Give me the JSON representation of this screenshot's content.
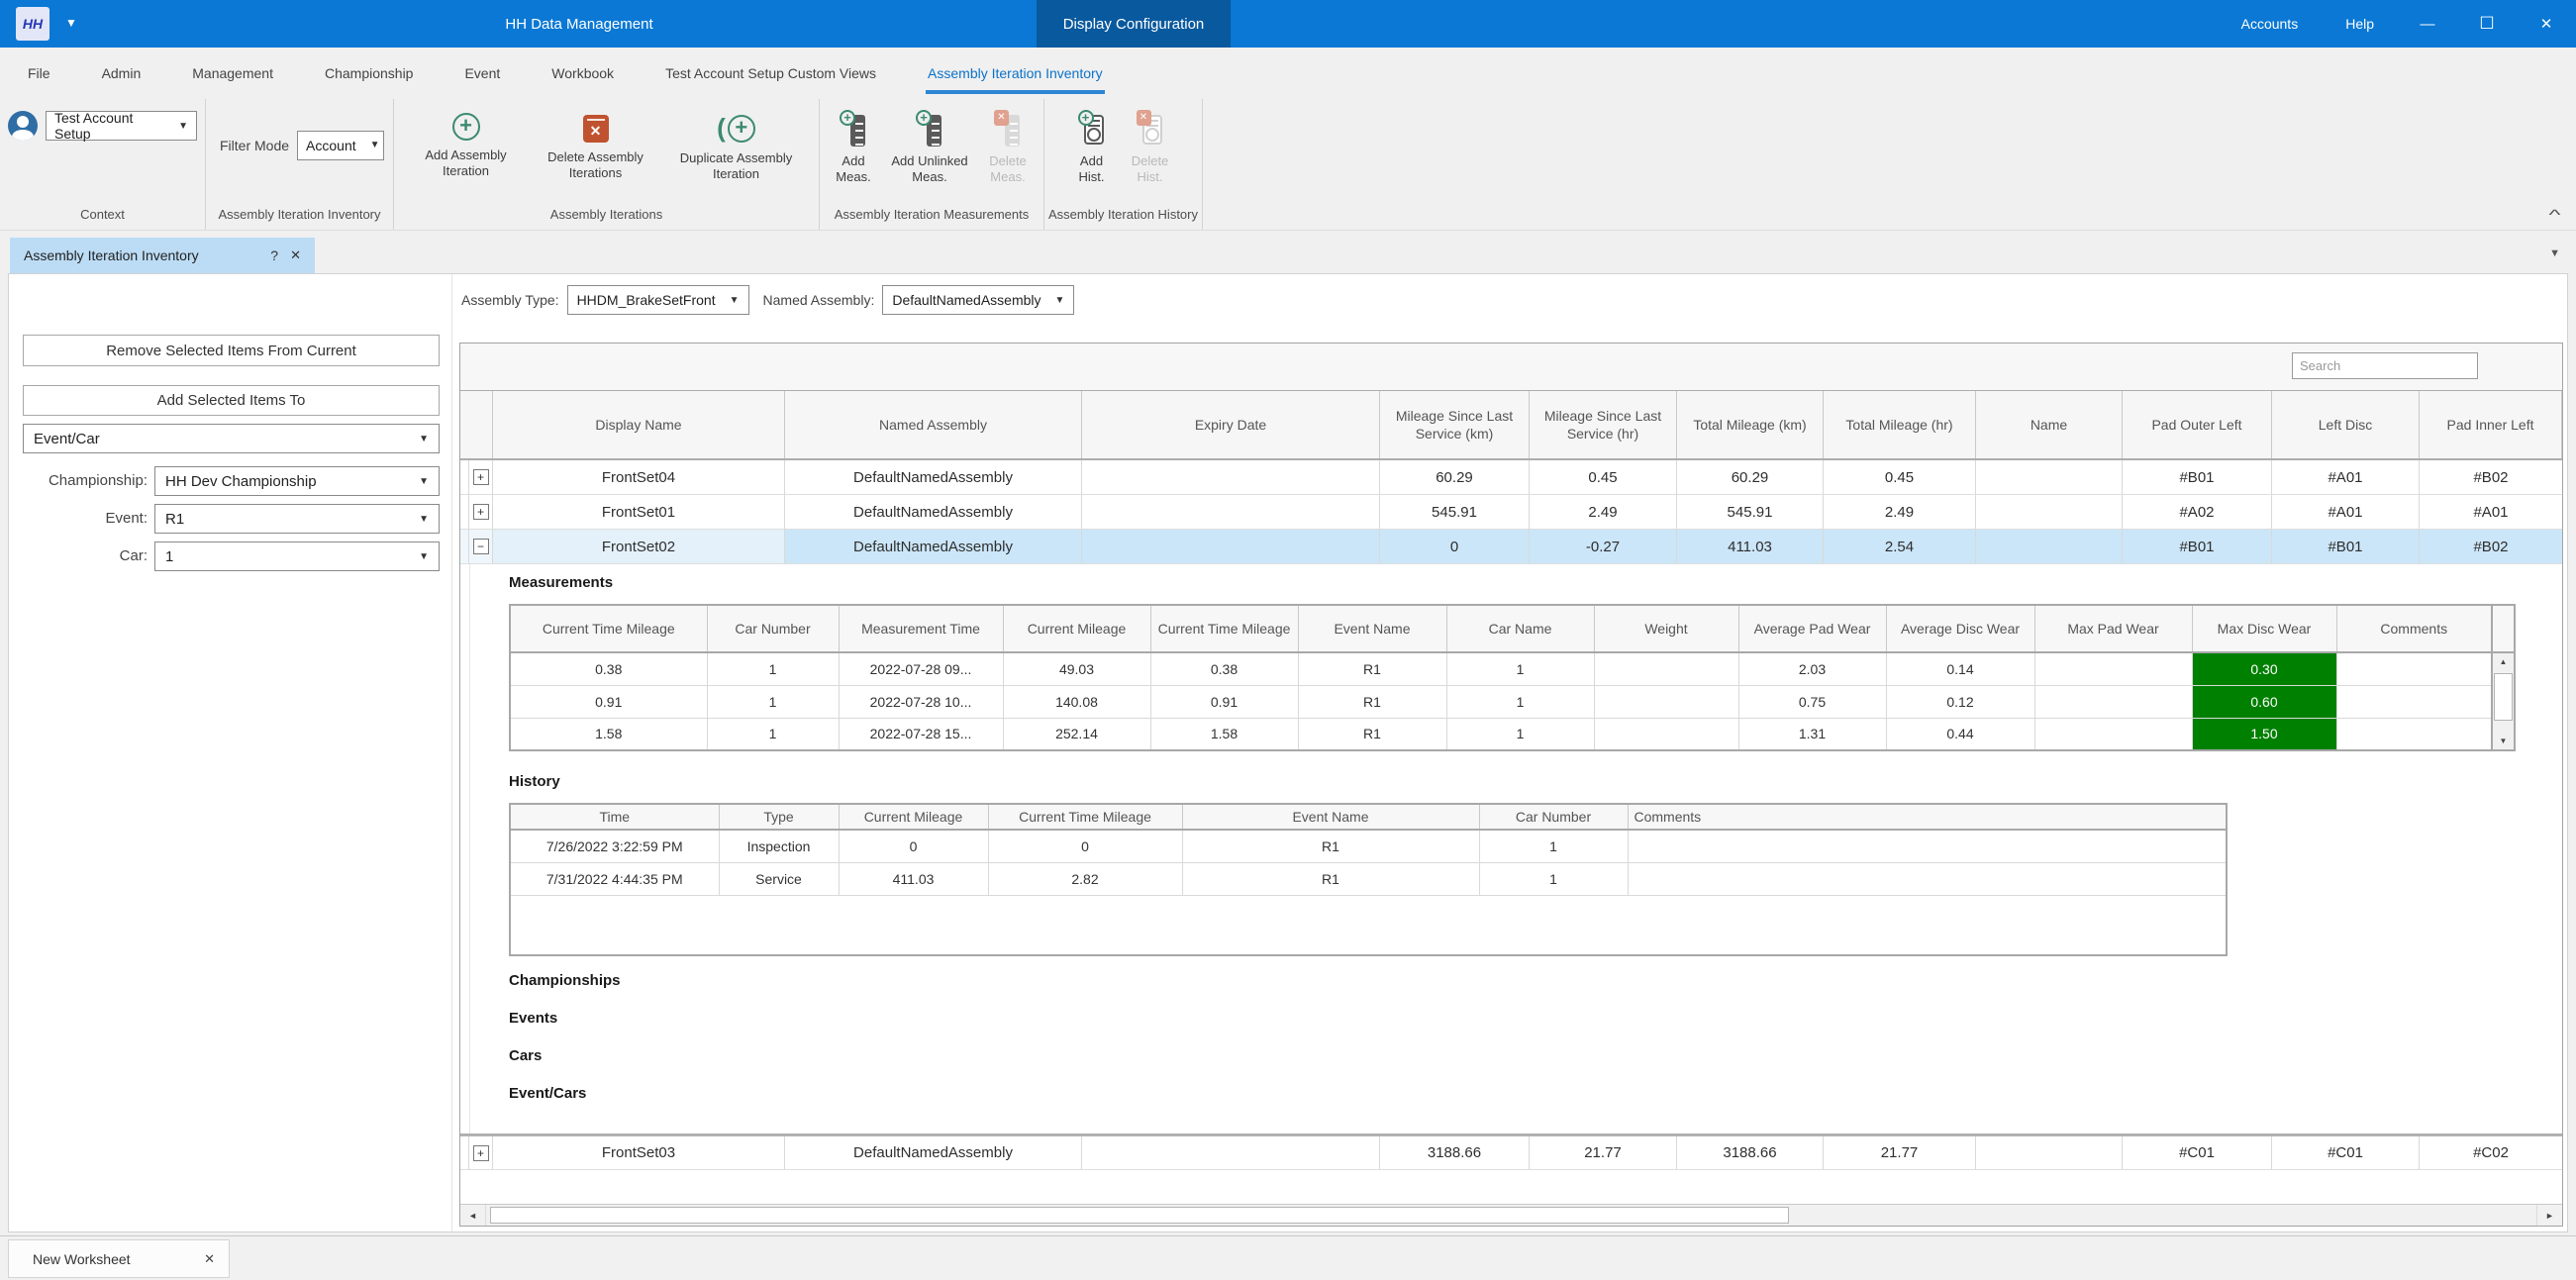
{
  "window": {
    "title": "HH Data Management",
    "active_view_tab": "Display Configuration",
    "accounts": "Accounts",
    "help": "Help",
    "minimize": "—",
    "maximize": "☐",
    "close": "✕"
  },
  "menubar": {
    "items": [
      "File",
      "Admin",
      "Management",
      "Championship",
      "Event",
      "Workbook",
      "Test Account Setup Custom Views",
      "Assembly Iteration Inventory"
    ],
    "selected": "Assembly Iteration Inventory"
  },
  "ribbon": {
    "context": {
      "label": "Context",
      "user_selector_value": "Test Account Setup"
    },
    "inventory": {
      "label": "Assembly Iteration Inventory",
      "filter_mode_label": "Filter Mode",
      "filter_mode_value": "Account"
    },
    "iterations": {
      "label": "Assembly Iterations",
      "add_button": "Add Assembly Iteration",
      "delete_button": "Delete Assembly Iterations",
      "duplicate_button": "Duplicate Assembly Iteration"
    },
    "measurements": {
      "label": "Assembly Iteration Measurements",
      "add_button": "Add Meas.",
      "add_unlinked_button": "Add Unlinked Meas.",
      "delete_button": "Delete Meas."
    },
    "history": {
      "label": "Assembly Iteration History",
      "add_button": "Add Hist.",
      "delete_button": "Delete Hist."
    }
  },
  "document_tab": {
    "label": "Assembly Iteration Inventory",
    "help_icon": "?",
    "close_icon": "✕"
  },
  "sidebar": {
    "remove_button": "Remove Selected Items From Current",
    "add_button": "Add Selected Items To",
    "add_target_value": "Event/Car",
    "championship_label": "Championship:",
    "championship_value": "HH Dev Championship",
    "event_label": "Event:",
    "event_value": "R1",
    "car_label": "Car:",
    "car_value": "1"
  },
  "toolbar": {
    "assembly_type_label": "Assembly Type:",
    "assembly_type_value": "HHDM_BrakeSetFront",
    "named_assembly_label": "Named Assembly:",
    "named_assembly_value": "DefaultNamedAssembly",
    "search_placeholder": "Search"
  },
  "grid": {
    "columns": [
      "Display Name",
      "Named Assembly",
      "Expiry Date",
      "Mileage Since Last Service (km)",
      "Mileage Since Last Service (hr)",
      "Total Mileage (km)",
      "Total Mileage (hr)",
      "Name",
      "Pad Outer Left",
      "Left Disc",
      "Pad Inner Left"
    ],
    "rows": [
      {
        "expander": "+",
        "cells": [
          "FrontSet04",
          "DefaultNamedAssembly",
          "",
          "60.29",
          "0.45",
          "60.29",
          "0.45",
          "",
          "#B01",
          "#A01",
          "#B02"
        ]
      },
      {
        "expander": "+",
        "cells": [
          "FrontSet01",
          "DefaultNamedAssembly",
          "",
          "545.91",
          "2.49",
          "545.91",
          "2.49",
          "",
          "#A02",
          "#A01",
          "#A01"
        ]
      },
      {
        "expander": "−",
        "cells": [
          "FrontSet02",
          "DefaultNamedAssembly",
          "",
          "0",
          "-0.27",
          "411.03",
          "2.54",
          "",
          "#B01",
          "#B01",
          "#B02"
        ]
      },
      {
        "expander": "+",
        "cells": [
          "FrontSet03",
          "DefaultNamedAssembly",
          "",
          "3188.66",
          "21.77",
          "3188.66",
          "21.77",
          "",
          "#C01",
          "#C01",
          "#C02"
        ]
      }
    ],
    "selected_row": "FrontSet02"
  },
  "measurements_table": {
    "title": "Measurements",
    "columns": [
      "Current Time Mileage",
      "Car Number",
      "Measurement Time",
      "Current Mileage",
      "Current Time Mileage",
      "Event Name",
      "Car Name",
      "Weight",
      "Average Pad Wear",
      "Average Disc Wear",
      "Max Pad Wear",
      "Max Disc Wear",
      "Comments"
    ],
    "rows": [
      [
        "0.38",
        "1",
        "2022-07-28 09...",
        "49.03",
        "0.38",
        "R1",
        "1",
        "",
        "2.03",
        "0.14",
        "",
        "0.30",
        ""
      ],
      [
        "0.91",
        "1",
        "2022-07-28 10...",
        "140.08",
        "0.91",
        "R1",
        "1",
        "",
        "0.75",
        "0.12",
        "",
        "0.60",
        ""
      ],
      [
        "1.58",
        "1",
        "2022-07-28 15...",
        "252.14",
        "1.58",
        "R1",
        "1",
        "",
        "1.31",
        "0.44",
        "",
        "1.50",
        ""
      ]
    ],
    "max_disc_wear_highlight_color": "#008000"
  },
  "history_table": {
    "title": "History",
    "columns": [
      "Time",
      "Type",
      "Current Mileage",
      "Current Time Mileage",
      "Event Name",
      "Car Number",
      "Comments"
    ],
    "rows": [
      [
        "7/26/2022 3:22:59 PM",
        "Inspection",
        "0",
        "0",
        "R1",
        "1",
        ""
      ],
      [
        "7/31/2022 4:44:35 PM",
        "Service",
        "411.03",
        "2.82",
        "R1",
        "1",
        ""
      ]
    ]
  },
  "detail_sections": [
    "Championships",
    "Events",
    "Cars",
    "Event/Cars"
  ],
  "statusbar": {
    "worksheet_tab": "New Worksheet",
    "close_icon": "✕"
  },
  "colors": {
    "titlebar": "#0a78d4",
    "active_view_tab": "#09599e",
    "selected_row": "#cbe6f8",
    "green_cell": "#008000",
    "ribbon_green": "#3c8a71",
    "ribbon_red": "#c0532f"
  }
}
